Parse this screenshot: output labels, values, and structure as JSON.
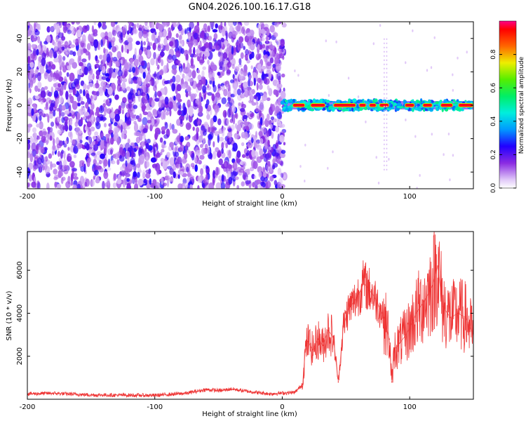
{
  "title": "GN04.2026.100.16.17.G18",
  "colors": {
    "snr_line": "#ee3333",
    "spectral_points": "#6a11d8",
    "axis": "#000000"
  },
  "chart_data": [
    {
      "type": "heatmap",
      "title": "GN04.2026.100.16.17.G18",
      "xlabel": "Height of straight line (km)",
      "ylabel": "Frequency (Hz)",
      "xlim": [
        -200,
        150
      ],
      "ylim": [
        -50,
        50
      ],
      "x_ticks": [
        "-200",
        "-100",
        "0",
        "100"
      ],
      "y_ticks": [
        "-40",
        "-20",
        "0",
        "20",
        "40"
      ],
      "colorbar": {
        "label": "Normalized spectral amplitude",
        "range": [
          0,
          1
        ],
        "ticks": [
          "0.0",
          "0.2",
          "0.4",
          "0.6",
          "0.8"
        ],
        "colormap": "rainbow (white-purple-blue-cyan-green-yellow-red-magenta)"
      },
      "features": {
        "noise_region_x": [
          -200,
          2
        ],
        "noise_amplitude": "0.1-0.5",
        "signal_band_x": [
          0,
          150
        ],
        "signal_frequency_hz": 0,
        "signal_amplitude": "0.6-1.0"
      }
    },
    {
      "type": "line",
      "xlabel": "Height of straight line (km)",
      "ylabel": "SNR (10 * v/v)",
      "xlim": [
        -200,
        150
      ],
      "ylim": [
        0,
        7800
      ],
      "x_ticks": [
        "-200",
        "-100",
        "0",
        "100"
      ],
      "y_ticks": [
        "2000",
        "4000",
        "6000"
      ],
      "series": [
        {
          "x": [
            -200,
            -180,
            -150,
            -100,
            -75,
            -60,
            -48,
            -40,
            -25,
            -10,
            10,
            16,
            18,
            20,
            24,
            28,
            32,
            36,
            40,
            44,
            48,
            52,
            56,
            60,
            64,
            68,
            72,
            76,
            80,
            84,
            86,
            88,
            92,
            96,
            100,
            106,
            112,
            118,
            122,
            126,
            132,
            138,
            144,
            150
          ],
          "y": [
            250,
            280,
            200,
            180,
            280,
            450,
            400,
            480,
            350,
            250,
            320,
            700,
            2200,
            2700,
            2300,
            2800,
            2500,
            3200,
            2900,
            800,
            3400,
            4200,
            4500,
            4900,
            5400,
            5100,
            4800,
            4300,
            3800,
            2800,
            800,
            2300,
            2600,
            2900,
            3300,
            4100,
            4600,
            5300,
            6200,
            4300,
            3800,
            4000,
            3800,
            3000
          ]
        }
      ]
    }
  ]
}
